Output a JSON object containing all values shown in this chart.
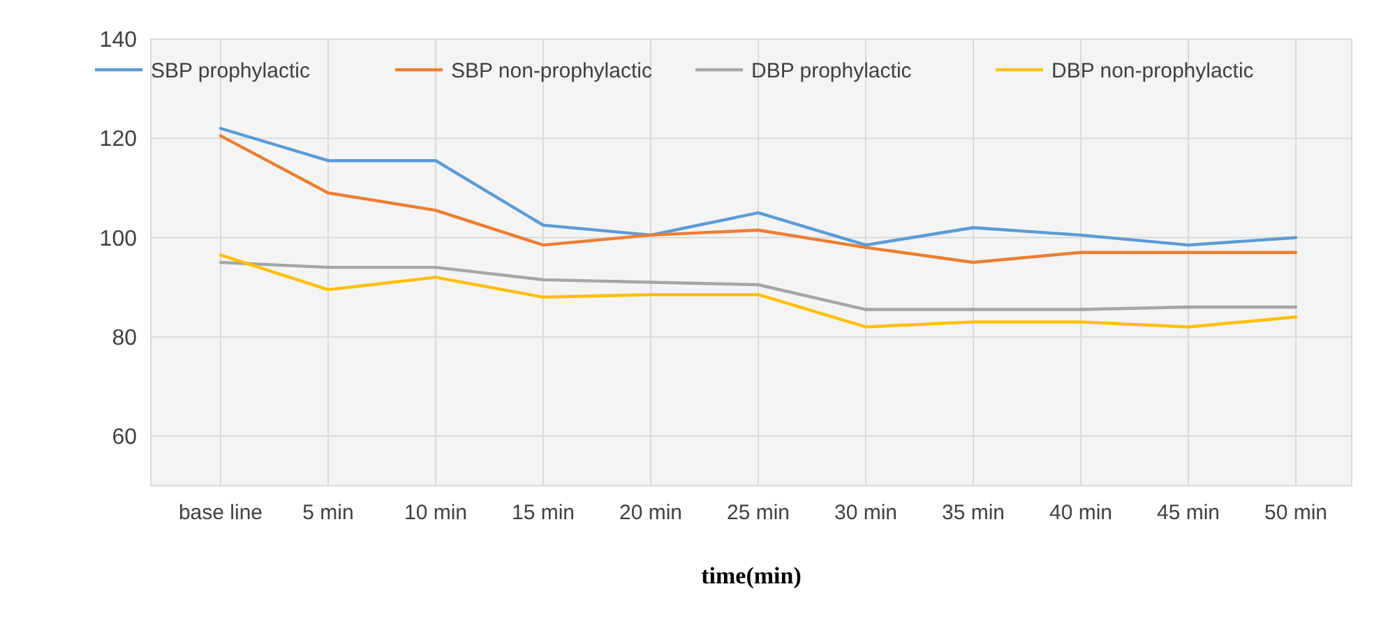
{
  "chart_data": {
    "type": "line",
    "xlabel": "time(min)",
    "categories": [
      "base line",
      "5 min",
      "10 min",
      "15 min",
      "20 min",
      "25 min",
      "30 min",
      "35 min",
      "40 min",
      "45 min",
      "50 min"
    ],
    "ylim": [
      50,
      140
    ],
    "yticks": [
      60,
      80,
      100,
      120,
      140
    ],
    "grid": true,
    "legend": "top",
    "marker": "none",
    "line_style": "solid",
    "series": [
      {
        "name": "SBP prophylactic",
        "color": "#5b9bd5",
        "values": [
          122,
          115.5,
          115.5,
          102.5,
          100.5,
          105,
          98.5,
          102,
          100.5,
          98.5,
          100
        ]
      },
      {
        "name": "SBP non-prophylactic",
        "color": "#ed7d31",
        "values": [
          120.5,
          109,
          105.5,
          98.5,
          100.5,
          101.5,
          98,
          95,
          97,
          97,
          97
        ]
      },
      {
        "name": "DBP prophylactic",
        "color": "#a5a5a5",
        "values": [
          95,
          94,
          94,
          91.5,
          91,
          90.5,
          85.5,
          85.5,
          85.5,
          86,
          86
        ]
      },
      {
        "name": "DBP non-prophylactic",
        "color": "#ffc000",
        "values": [
          96.5,
          89.5,
          92,
          88,
          88.5,
          88.5,
          82,
          83,
          83,
          82,
          84
        ]
      }
    ]
  }
}
